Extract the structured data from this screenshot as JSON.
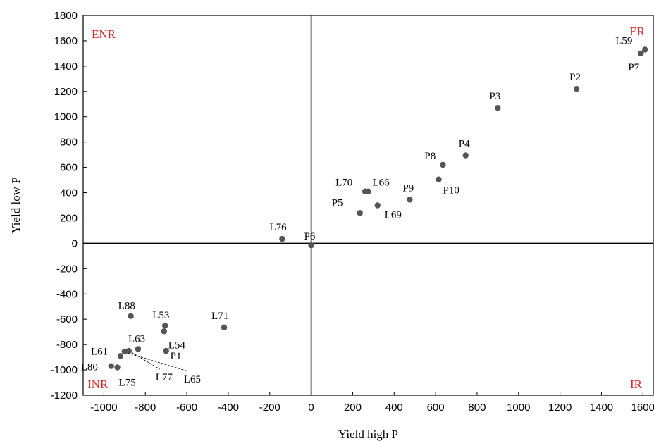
{
  "chart_data": {
    "type": "scatter",
    "title": "",
    "xlabel": "Yield high P",
    "ylabel": "Yield low P",
    "xlim": [
      -1100,
      1650
    ],
    "ylim": [
      -1200,
      1800
    ],
    "xticks": [
      -1000,
      -800,
      -600,
      -400,
      -200,
      0,
      200,
      400,
      600,
      800,
      1000,
      1200,
      1400,
      1600
    ],
    "yticks": [
      -1200,
      -1000,
      -800,
      -600,
      -400,
      -200,
      0,
      200,
      400,
      600,
      800,
      1000,
      1200,
      1400,
      1600,
      1800
    ],
    "grid": false,
    "quadrant_labels": [
      {
        "text": "ENR",
        "position": "top-left"
      },
      {
        "text": "ER",
        "position": "top-right"
      },
      {
        "text": "INR",
        "position": "bottom-left"
      },
      {
        "text": "IR",
        "position": "bottom-right"
      }
    ],
    "points": [
      {
        "label": "L59",
        "x": 1610,
        "y": 1530
      },
      {
        "label": "P7",
        "x": 1590,
        "y": 1500
      },
      {
        "label": "P2",
        "x": 1280,
        "y": 1220
      },
      {
        "label": "P3",
        "x": 900,
        "y": 1070
      },
      {
        "label": "P4",
        "x": 745,
        "y": 695
      },
      {
        "label": "P8",
        "x": 635,
        "y": 620
      },
      {
        "label": "P10",
        "x": 615,
        "y": 505
      },
      {
        "label": "P9",
        "x": 475,
        "y": 345
      },
      {
        "label": "L70",
        "x": 260,
        "y": 410
      },
      {
        "label": "L66",
        "x": 275,
        "y": 410
      },
      {
        "label": "L69",
        "x": 320,
        "y": 300
      },
      {
        "label": "P5",
        "x": 235,
        "y": 240
      },
      {
        "label": "L76",
        "x": -140,
        "y": 35
      },
      {
        "label": "P6",
        "x": 0,
        "y": -15
      },
      {
        "label": "L71",
        "x": -420,
        "y": -665
      },
      {
        "label": "L53",
        "x": -705,
        "y": -650
      },
      {
        "label": "L54",
        "x": -710,
        "y": -695
      },
      {
        "label": "L88",
        "x": -870,
        "y": -575
      },
      {
        "label": "P1",
        "x": -700,
        "y": -850
      },
      {
        "label": "L63",
        "x": -835,
        "y": -835
      },
      {
        "label": "L61",
        "x": -920,
        "y": -890
      },
      {
        "label": "L77",
        "x": -880,
        "y": -850
      },
      {
        "label": "L65",
        "x": -900,
        "y": -855
      },
      {
        "label": "L80",
        "x": -965,
        "y": -970
      },
      {
        "label": "L75",
        "x": -935,
        "y": -980
      }
    ]
  }
}
